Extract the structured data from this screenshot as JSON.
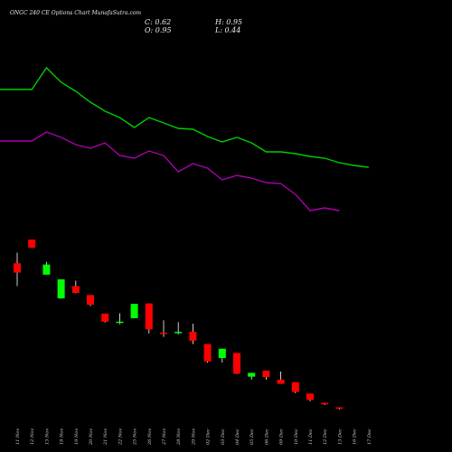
{
  "header": {
    "title": "ONGC 240  CE Options  Chart MunafaSutra.com",
    "close_label": "C: 0.62",
    "open_label": "O: 0.95",
    "high_label": "H: 0.95",
    "low_label": "L: 0.44"
  },
  "colors": {
    "background": "#000000",
    "up": "#00ff00",
    "down": "#ff0000",
    "green_line": "#00cc00",
    "purple_line": "#aa00aa"
  },
  "chart_data": {
    "type": "candlestick",
    "categories": [
      "11 Nov",
      "12 Nov",
      "13 Nov",
      "18 Nov",
      "19 Nov",
      "20 Nov",
      "21 Nov",
      "22 Nov",
      "25 Nov",
      "26 Nov",
      "27 Nov",
      "28 Nov",
      "29 Nov",
      "02 Dec",
      "03 Dec",
      "04 Dec",
      "05 Dec",
      "06 Dec",
      "09 Dec",
      "10 Dec",
      "11 Dec",
      "12 Dec",
      "13 Dec",
      "16 Dec",
      "17 Dec"
    ],
    "ohlc_series": [
      {
        "date": "11 Nov",
        "open": 35.0,
        "high": 37.5,
        "low": 29.6,
        "close": 32.8
      },
      {
        "date": "12 Nov",
        "open": 40.6,
        "high": 40.6,
        "low": 38.6,
        "close": 38.7
      },
      {
        "date": "13 Nov",
        "open": 32.3,
        "high": 35.3,
        "low": 32.3,
        "close": 34.7
      },
      {
        "date": "18 Nov",
        "open": 26.7,
        "high": 26.7,
        "low": 26.6,
        "close": 31.2
      },
      {
        "date": "19 Nov",
        "open": 29.6,
        "high": 30.9,
        "low": 27.9,
        "close": 28.0
      },
      {
        "date": "20 Nov",
        "open": 27.5,
        "high": 27.5,
        "low": 24.9,
        "close": 25.2
      },
      {
        "date": "21 Nov",
        "open": 23.1,
        "high": 23.1,
        "low": 21.0,
        "close": 21.2
      },
      {
        "date": "22 Nov",
        "open": 21.1,
        "high": 23.2,
        "low": 20.6,
        "close": 21.2
      },
      {
        "date": "25 Nov",
        "open": 22.0,
        "high": 25.4,
        "low": 22.0,
        "close": 25.4
      },
      {
        "date": "26 Nov",
        "open": 25.5,
        "high": 25.5,
        "low": 18.4,
        "close": 19.4
      },
      {
        "date": "27 Nov",
        "open": 18.6,
        "high": 21.5,
        "low": 17.6,
        "close": 18.4
      },
      {
        "date": "28 Nov",
        "open": 18.6,
        "high": 21.1,
        "low": 18.2,
        "close": 18.8
      },
      {
        "date": "29 Nov",
        "open": 18.8,
        "high": 20.7,
        "low": 15.9,
        "close": 16.7
      },
      {
        "date": "02 Dec",
        "open": 15.9,
        "high": 15.9,
        "low": 11.5,
        "close": 11.8
      },
      {
        "date": "03 Dec",
        "open": 12.6,
        "high": 14.8,
        "low": 11.5,
        "close": 14.8
      },
      {
        "date": "04 Dec",
        "open": 13.8,
        "high": 13.8,
        "low": 8.8,
        "close": 8.9
      },
      {
        "date": "05 Dec",
        "open": 8.2,
        "high": 9.1,
        "low": 7.5,
        "close": 9.1
      },
      {
        "date": "06 Dec",
        "open": 9.6,
        "high": 9.6,
        "low": 7.5,
        "close": 8.1
      },
      {
        "date": "09 Dec",
        "open": 7.5,
        "high": 9.4,
        "low": 7.3,
        "close": 6.5
      },
      {
        "date": "10 Dec",
        "open": 6.9,
        "high": 6.9,
        "low": 4.3,
        "close": 4.6
      },
      {
        "date": "11 Dec",
        "open": 4.2,
        "high": 4.2,
        "low": 2.4,
        "close": 2.7
      },
      {
        "date": "12 Dec",
        "open": 2.0,
        "high": 2.0,
        "low": 1.5,
        "close": 1.7
      },
      {
        "date": "13 Dec",
        "open": 0.95,
        "high": 0.95,
        "low": 0.44,
        "close": 0.62
      }
    ],
    "lines": [
      {
        "color": "#00cc00",
        "values": [
          99,
          99,
          75,
          91,
          101,
          113,
          123,
          130,
          141,
          130,
          136,
          142,
          143,
          151,
          157,
          152,
          158,
          168,
          168,
          170,
          173,
          175,
          180,
          183,
          185
        ]
      },
      {
        "color": "#aa00aa",
        "values": [
          156,
          156,
          146,
          152,
          160,
          164,
          158,
          172,
          175,
          167,
          172,
          190,
          181,
          186,
          199,
          194,
          197,
          202,
          203,
          215,
          233,
          230,
          233
        ]
      }
    ],
    "yrange_px": [
      0,
      500
    ]
  }
}
